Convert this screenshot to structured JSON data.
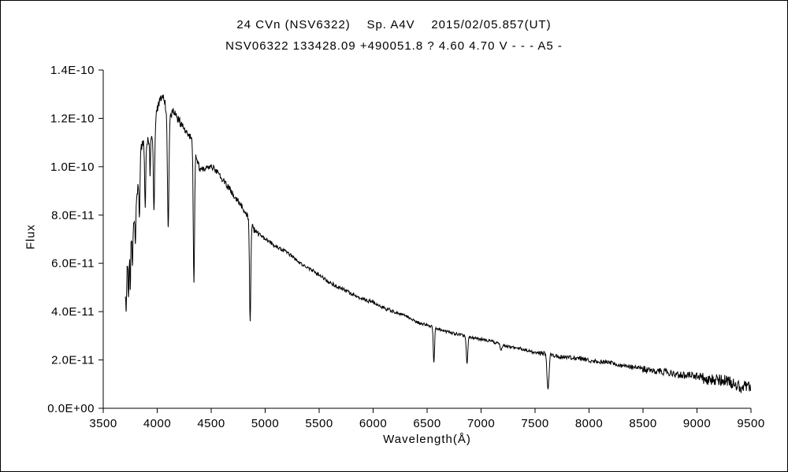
{
  "chart_data": {
    "type": "line",
    "title": "24 CVn (NSV6322)    Sp. A4V    2015/02/05.857(UT)",
    "subtitle": "NSV06322 133428.09 +490051.8 ? 4.60 4.70 V - - - A5 -",
    "xlabel": "Wavelength(Å)",
    "ylabel": "Flux",
    "xlim": [
      3500,
      9500
    ],
    "ylim": [
      0,
      1.4e-10
    ],
    "grid": false,
    "legend": "none",
    "line_color": "#000000",
    "background_color": "#ffffff",
    "x_ticks": [
      3500,
      4000,
      4500,
      5000,
      5500,
      6000,
      6500,
      7000,
      7500,
      8000,
      8500,
      9000,
      9500
    ],
    "x_tick_labels": [
      "3500",
      "4000",
      "4500",
      "5000",
      "5500",
      "6000",
      "6500",
      "7000",
      "7500",
      "8000",
      "8500",
      "9000",
      "9500"
    ],
    "y_ticks": [
      0,
      2e-11,
      4e-11,
      6e-11,
      8e-11,
      1e-10,
      1.2e-10,
      1.4e-10
    ],
    "y_tick_labels": [
      "0.0E+00",
      "2.0E-11",
      "4.0E-11",
      "6.0E-11",
      "8.0E-11",
      "1.0E-10",
      "1.2E-10",
      "1.4E-10"
    ],
    "series": [
      {
        "name": "spectrum",
        "x_range": [
          3705,
          9500
        ],
        "continuum_points": [
          [
            3705,
            5e-11
          ],
          [
            3720,
            5.8e-11
          ],
          [
            3740,
            6.2e-11
          ],
          [
            3760,
            6.9e-11
          ],
          [
            3780,
            7.6e-11
          ],
          [
            3800,
            8.4e-11
          ],
          [
            3820,
            9.3e-11
          ],
          [
            3845,
            1.06e-10
          ],
          [
            3870,
            1.1e-10
          ],
          [
            3905,
            1.11e-10
          ],
          [
            3940,
            1.11e-10
          ],
          [
            3975,
            1.16e-10
          ],
          [
            4000,
            1.24e-10
          ],
          [
            4030,
            1.28e-10
          ],
          [
            4055,
            1.3e-10
          ],
          [
            4075,
            1.25e-10
          ],
          [
            4100,
            1.21e-10
          ],
          [
            4150,
            1.22e-10
          ],
          [
            4200,
            1.19e-10
          ],
          [
            4260,
            1.15e-10
          ],
          [
            4310,
            1.12e-10
          ],
          [
            4400,
            9.8e-11
          ],
          [
            4460,
            1e-10
          ],
          [
            4520,
            1e-10
          ],
          [
            4600,
            9.5e-11
          ],
          [
            4700,
            8.9e-11
          ],
          [
            4800,
            8.3e-11
          ],
          [
            4900,
            7.35e-11
          ],
          [
            5000,
            7e-11
          ],
          [
            5100,
            6.7e-11
          ],
          [
            5200,
            6.4e-11
          ],
          [
            5300,
            6.1e-11
          ],
          [
            5400,
            5.8e-11
          ],
          [
            5500,
            5.5e-11
          ],
          [
            5600,
            5.25e-11
          ],
          [
            5700,
            5e-11
          ],
          [
            5800,
            4.75e-11
          ],
          [
            5900,
            4.55e-11
          ],
          [
            6000,
            4.35e-11
          ],
          [
            6100,
            4.15e-11
          ],
          [
            6200,
            3.95e-11
          ],
          [
            6300,
            3.8e-11
          ],
          [
            6400,
            3.6e-11
          ],
          [
            6500,
            3.45e-11
          ],
          [
            6600,
            3.3e-11
          ],
          [
            6700,
            3.2e-11
          ],
          [
            6800,
            3.05e-11
          ],
          [
            6900,
            2.95e-11
          ],
          [
            7000,
            2.85e-11
          ],
          [
            7100,
            2.72e-11
          ],
          [
            7200,
            2.6e-11
          ],
          [
            7300,
            2.5e-11
          ],
          [
            7400,
            2.42e-11
          ],
          [
            7500,
            2.33e-11
          ],
          [
            7600,
            2.28e-11
          ],
          [
            7700,
            2.2e-11
          ],
          [
            7800,
            2.12e-11
          ],
          [
            7900,
            2.05e-11
          ],
          [
            8000,
            1.98e-11
          ],
          [
            8100,
            1.9e-11
          ],
          [
            8200,
            1.83e-11
          ],
          [
            8300,
            1.77e-11
          ],
          [
            8400,
            1.7e-11
          ],
          [
            8500,
            1.64e-11
          ],
          [
            8600,
            1.57e-11
          ],
          [
            8700,
            1.5e-11
          ],
          [
            8800,
            1.43e-11
          ],
          [
            8900,
            1.36e-11
          ],
          [
            9000,
            1.28e-11
          ],
          [
            9100,
            1.2e-11
          ],
          [
            9200,
            1.12e-11
          ],
          [
            9300,
            1.05e-11
          ],
          [
            9400,
            9.5e-12
          ],
          [
            9500,
            8.5e-12
          ]
        ],
        "absorption_lines": [
          {
            "center": 3712,
            "bottom": 4e-11,
            "fwhm": 8
          },
          {
            "center": 3734,
            "bottom": 4.6e-11,
            "fwhm": 8
          },
          {
            "center": 3750,
            "bottom": 4.9e-11,
            "fwhm": 8
          },
          {
            "center": 3771,
            "bottom": 5.9e-11,
            "fwhm": 9
          },
          {
            "center": 3798,
            "bottom": 6.8e-11,
            "fwhm": 10
          },
          {
            "center": 3835,
            "bottom": 7.9e-11,
            "fwhm": 12
          },
          {
            "center": 3889,
            "bottom": 8.3e-11,
            "fwhm": 12
          },
          {
            "center": 3934,
            "bottom": 9.6e-11,
            "fwhm": 7
          },
          {
            "center": 3970,
            "bottom": 8.2e-11,
            "fwhm": 14
          },
          {
            "center": 4102,
            "bottom": 7.5e-11,
            "fwhm": 16
          },
          {
            "center": 4340,
            "bottom": 5.2e-11,
            "fwhm": 14
          },
          {
            "center": 4861,
            "bottom": 3.6e-11,
            "fwhm": 14
          },
          {
            "center": 6563,
            "bottom": 1.9e-11,
            "fwhm": 14
          },
          {
            "center": 6870,
            "bottom": 1.85e-11,
            "fwhm": 16
          },
          {
            "center": 7185,
            "bottom": 2.4e-11,
            "fwhm": 18
          },
          {
            "center": 7620,
            "bottom": 8e-12,
            "fwhm": 22
          }
        ],
        "noise_segments": [
          {
            "max_wavelength": 3765,
            "amplitude": 5.5e-12
          },
          {
            "max_wavelength": 3860,
            "amplitude": 3e-12
          },
          {
            "max_wavelength": 4250,
            "amplitude": 1.8e-12
          },
          {
            "max_wavelength": 5000,
            "amplitude": 1.3e-12
          },
          {
            "max_wavelength": 6200,
            "amplitude": 8e-13
          },
          {
            "max_wavelength": 7500,
            "amplitude": 6e-13
          },
          {
            "max_wavelength": 8500,
            "amplitude": 9e-13
          },
          {
            "max_wavelength": 9050,
            "amplitude": 1.5e-12
          },
          {
            "max_wavelength": 9501,
            "amplitude": 2.6e-12
          }
        ]
      }
    ]
  }
}
